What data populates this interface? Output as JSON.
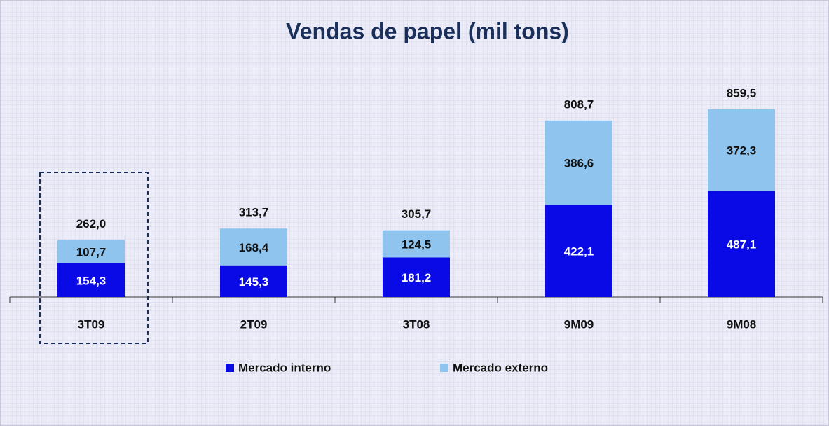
{
  "chart_data": {
    "type": "bar",
    "stacked": true,
    "title": "Vendas de papel (mil tons)",
    "categories": [
      "3T09",
      "2T09",
      "3T08",
      "9M09",
      "9M08"
    ],
    "series": [
      {
        "name": "Mercado interno",
        "color": "#0a0ae6",
        "values": [
          154.3,
          145.3,
          181.2,
          422.1,
          487.1
        ],
        "value_labels": [
          "154,3",
          "145,3",
          "181,2",
          "422,1",
          "487,1"
        ]
      },
      {
        "name": "Mercado externo",
        "color": "#8ec4ee",
        "values": [
          107.7,
          168.4,
          124.5,
          386.6,
          372.3
        ],
        "value_labels": [
          "107,7",
          "168,4",
          "124,5",
          "386,6",
          "372,3"
        ]
      }
    ],
    "totals": [
      262.0,
      313.7,
      305.7,
      808.7,
      859.5
    ],
    "total_labels": [
      "262,0",
      "313,7",
      "305,7",
      "808,7",
      "859,5"
    ],
    "legend": "bottom"
  }
}
